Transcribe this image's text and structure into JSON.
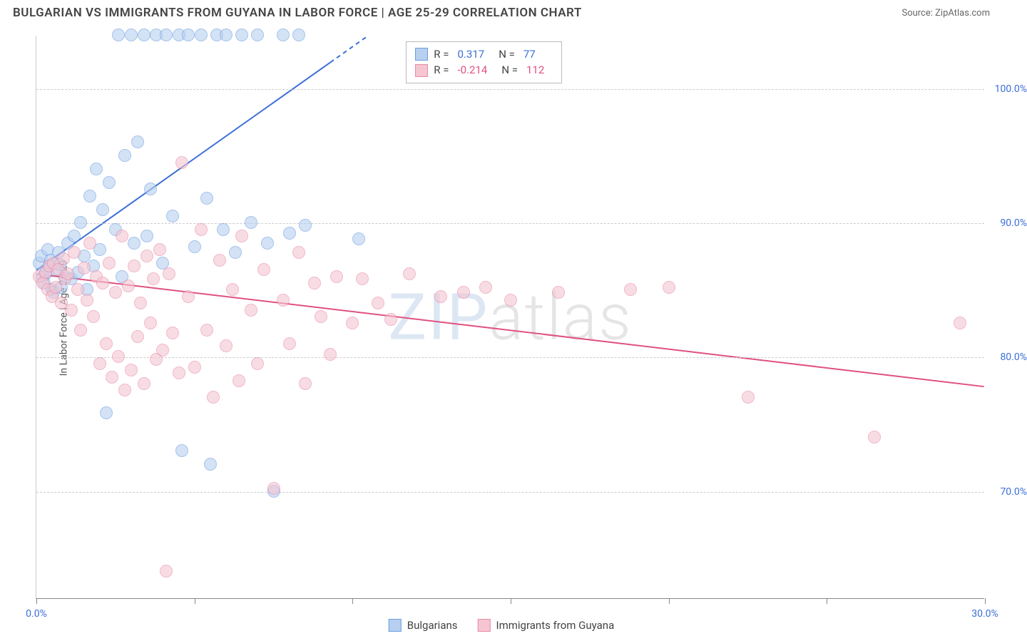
{
  "title": "BULGARIAN VS IMMIGRANTS FROM GUYANA IN LABOR FORCE | AGE 25-29 CORRELATION CHART",
  "source": "Source: ZipAtlas.com",
  "ylabel": "In Labor Force | Age 25-29",
  "watermark_bold": "ZIP",
  "watermark_thin": "atlas",
  "chart": {
    "type": "scatter",
    "background_color": "#ffffff",
    "grid_color": "#cccccc",
    "axis_color": "#888888",
    "label_color": "#555555",
    "tick_label_color": "#3b6fd8",
    "xlim": [
      0,
      30
    ],
    "ylim": [
      62,
      104
    ],
    "xticks": [
      0,
      5,
      10,
      15,
      20,
      25,
      30
    ],
    "xtick_labels": {
      "0": "0.0%",
      "30": "30.0%"
    },
    "yticks": [
      70,
      80,
      90,
      100
    ],
    "ytick_labels": {
      "70": "70.0%",
      "80": "80.0%",
      "90": "90.0%",
      "100": "100.0%"
    },
    "point_radius": 9,
    "point_opacity": 0.6
  },
  "series": [
    {
      "name": "Bulgarians",
      "color_fill": "#b7d0f0",
      "color_stroke": "#6a9de0",
      "r_label": "R =",
      "r_value": "0.317",
      "r_color": "#3b6fd8",
      "n_label": "N =",
      "n_value": "77",
      "trend": {
        "x1": 0,
        "y1": 86.5,
        "x2": 10.5,
        "y2": 104,
        "dash_from_x": 9.3,
        "stroke_width": 2
      },
      "points": [
        [
          0.1,
          87
        ],
        [
          0.2,
          86
        ],
        [
          0.15,
          87.5
        ],
        [
          0.3,
          86.2
        ],
        [
          0.25,
          85.5
        ],
        [
          0.35,
          88
        ],
        [
          0.4,
          86.8
        ],
        [
          0.5,
          85
        ],
        [
          0.45,
          87.2
        ],
        [
          0.6,
          86.5
        ],
        [
          0.55,
          84.8
        ],
        [
          0.7,
          87.8
        ],
        [
          0.8,
          85.2
        ],
        [
          0.75,
          86.9
        ],
        [
          0.9,
          86
        ],
        [
          1.0,
          88.5
        ],
        [
          1.1,
          85.8
        ],
        [
          1.2,
          89
        ],
        [
          1.3,
          86.3
        ],
        [
          1.4,
          90
        ],
        [
          1.5,
          87.5
        ],
        [
          1.6,
          85
        ],
        [
          1.7,
          92
        ],
        [
          1.8,
          86.8
        ],
        [
          1.9,
          94
        ],
        [
          2.0,
          88
        ],
        [
          2.1,
          91
        ],
        [
          2.2,
          75.8
        ],
        [
          2.3,
          93
        ],
        [
          2.5,
          89.5
        ],
        [
          2.6,
          104
        ],
        [
          2.7,
          86
        ],
        [
          2.8,
          95
        ],
        [
          3.0,
          104
        ],
        [
          3.1,
          88.5
        ],
        [
          3.2,
          96
        ],
        [
          3.4,
          104
        ],
        [
          3.5,
          89
        ],
        [
          3.6,
          92.5
        ],
        [
          3.8,
          104
        ],
        [
          4.0,
          87
        ],
        [
          4.1,
          104
        ],
        [
          4.3,
          90.5
        ],
        [
          4.5,
          104
        ],
        [
          4.6,
          73
        ],
        [
          4.8,
          104
        ],
        [
          5.0,
          88.2
        ],
        [
          5.2,
          104
        ],
        [
          5.4,
          91.8
        ],
        [
          5.5,
          72
        ],
        [
          5.7,
          104
        ],
        [
          5.9,
          89.5
        ],
        [
          6.0,
          104
        ],
        [
          6.3,
          87.8
        ],
        [
          6.5,
          104
        ],
        [
          6.8,
          90
        ],
        [
          7.0,
          104
        ],
        [
          7.3,
          88.5
        ],
        [
          7.5,
          70
        ],
        [
          7.8,
          104
        ],
        [
          8.0,
          89.2
        ],
        [
          8.3,
          104
        ],
        [
          8.5,
          89.8
        ],
        [
          10.2,
          88.8
        ]
      ]
    },
    {
      "name": "Immigrants from Guyana",
      "color_fill": "#f5c5d2",
      "color_stroke": "#e88aa6",
      "r_label": "R =",
      "r_value": "-0.214",
      "r_color": "#e05080",
      "n_label": "N =",
      "n_value": "112",
      "trend": {
        "x1": 0,
        "y1": 86.2,
        "x2": 30,
        "y2": 77.8,
        "stroke_width": 2
      },
      "points": [
        [
          0.1,
          86
        ],
        [
          0.2,
          85.5
        ],
        [
          0.3,
          86.3
        ],
        [
          0.35,
          85
        ],
        [
          0.4,
          86.8
        ],
        [
          0.5,
          84.5
        ],
        [
          0.55,
          87
        ],
        [
          0.6,
          85.2
        ],
        [
          0.7,
          86.5
        ],
        [
          0.8,
          84
        ],
        [
          0.85,
          87.3
        ],
        [
          0.9,
          85.8
        ],
        [
          1.0,
          86.2
        ],
        [
          1.1,
          83.5
        ],
        [
          1.2,
          87.8
        ],
        [
          1.3,
          85
        ],
        [
          1.4,
          82
        ],
        [
          1.5,
          86.6
        ],
        [
          1.6,
          84.2
        ],
        [
          1.7,
          88.5
        ],
        [
          1.8,
          83
        ],
        [
          1.9,
          86
        ],
        [
          2.0,
          79.5
        ],
        [
          2.1,
          85.5
        ],
        [
          2.2,
          81
        ],
        [
          2.3,
          87
        ],
        [
          2.4,
          78.5
        ],
        [
          2.5,
          84.8
        ],
        [
          2.6,
          80
        ],
        [
          2.7,
          89
        ],
        [
          2.8,
          77.5
        ],
        [
          2.9,
          85.3
        ],
        [
          3.0,
          79
        ],
        [
          3.1,
          86.8
        ],
        [
          3.2,
          81.5
        ],
        [
          3.3,
          84
        ],
        [
          3.4,
          78
        ],
        [
          3.5,
          87.5
        ],
        [
          3.6,
          82.5
        ],
        [
          3.7,
          85.8
        ],
        [
          3.8,
          79.8
        ],
        [
          3.9,
          88
        ],
        [
          4.0,
          80.5
        ],
        [
          4.1,
          64
        ],
        [
          4.2,
          86.2
        ],
        [
          4.3,
          81.8
        ],
        [
          4.5,
          78.8
        ],
        [
          4.6,
          94.5
        ],
        [
          4.8,
          84.5
        ],
        [
          5.0,
          79.2
        ],
        [
          5.2,
          89.5
        ],
        [
          5.4,
          82
        ],
        [
          5.6,
          77
        ],
        [
          5.8,
          87.2
        ],
        [
          6.0,
          80.8
        ],
        [
          6.2,
          85
        ],
        [
          6.4,
          78.2
        ],
        [
          6.5,
          89
        ],
        [
          6.8,
          83.5
        ],
        [
          7.0,
          79.5
        ],
        [
          7.2,
          86.5
        ],
        [
          7.5,
          70.2
        ],
        [
          7.8,
          84.2
        ],
        [
          8.0,
          81
        ],
        [
          8.3,
          87.8
        ],
        [
          8.5,
          78
        ],
        [
          8.8,
          85.5
        ],
        [
          9.0,
          83
        ],
        [
          9.3,
          80.2
        ],
        [
          9.5,
          86
        ],
        [
          10.0,
          82.5
        ],
        [
          10.3,
          85.8
        ],
        [
          10.8,
          84
        ],
        [
          11.2,
          82.8
        ],
        [
          11.8,
          86.2
        ],
        [
          12.8,
          84.5
        ],
        [
          13.5,
          84.8
        ],
        [
          14.2,
          85.2
        ],
        [
          15.0,
          84.2
        ],
        [
          16.5,
          84.8
        ],
        [
          18.8,
          85
        ],
        [
          20.0,
          85.2
        ],
        [
          22.5,
          77
        ],
        [
          26.5,
          74
        ],
        [
          29.2,
          82.5
        ]
      ]
    }
  ],
  "stat_box": {
    "left_pct": 39,
    "top_pct": 1
  },
  "legend": {
    "items": [
      {
        "label": "Bulgarians",
        "fill": "#b7d0f0",
        "stroke": "#6a9de0"
      },
      {
        "label": "Immigrants from Guyana",
        "fill": "#f5c5d2",
        "stroke": "#e88aa6"
      }
    ]
  }
}
